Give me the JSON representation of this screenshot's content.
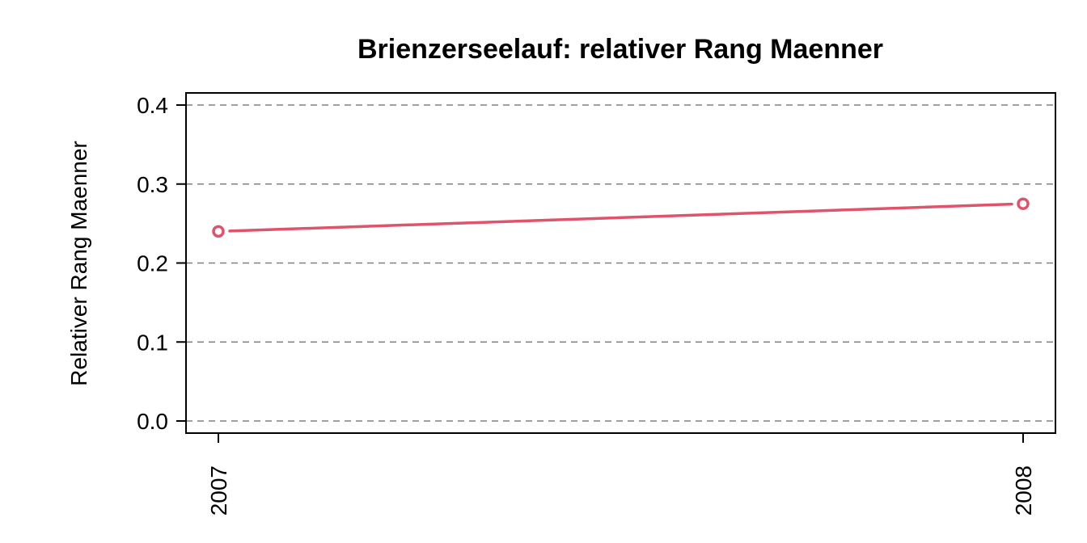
{
  "colors": {
    "series": "#DF536B",
    "grid": "#808080",
    "axis": "#000000"
  },
  "chart_data": {
    "type": "line",
    "title": "Brienzerseelauf: relativer Rang Maenner",
    "xlabel": "",
    "ylabel": "Relativer Rang Maenner",
    "x": [
      "2007",
      "2008"
    ],
    "ylim": [
      0,
      0.4
    ],
    "yticks": [
      "0.0",
      "0.1",
      "0.2",
      "0.3",
      "0.4"
    ],
    "grid": "horizontal dashed",
    "series": [
      {
        "values": [
          0.24,
          0.275
        ],
        "marker": "open-circle"
      }
    ]
  }
}
